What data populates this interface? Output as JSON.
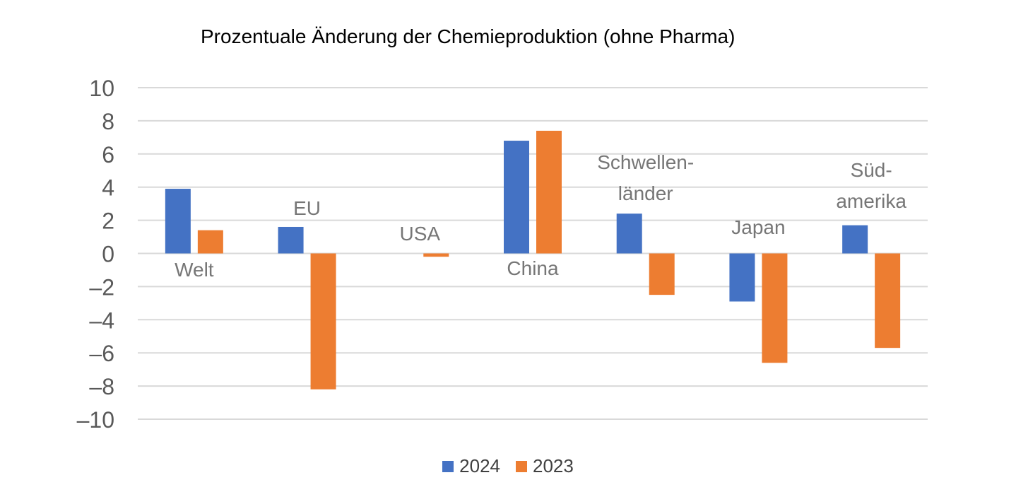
{
  "chart_data": {
    "type": "bar",
    "title": "Prozentuale Änderung der Chemieproduktion (ohne Pharma)",
    "categories": [
      "Welt",
      "EU",
      "USA",
      "China",
      "Schwellen-\nländer",
      "Japan",
      "Süd-\namerika"
    ],
    "series": [
      {
        "name": "2024",
        "color": "#4472C4",
        "values": [
          3.9,
          1.6,
          0.0,
          6.8,
          2.4,
          -2.9,
          1.7
        ]
      },
      {
        "name": "2023",
        "color": "#ED7D31",
        "values": [
          1.4,
          -8.2,
          -0.2,
          7.4,
          -2.5,
          -6.6,
          -5.7
        ]
      }
    ],
    "ylim": [
      -10,
      10
    ],
    "yticks": [
      10,
      8,
      6,
      4,
      2,
      0,
      -2,
      -4,
      -6,
      -8,
      -10
    ],
    "ytick_labels": [
      "10",
      "8",
      "6",
      "4",
      "2",
      "0",
      "–2",
      "–4",
      "–6",
      "–8",
      "–10"
    ],
    "grid": true,
    "legend_position": "bottom"
  }
}
